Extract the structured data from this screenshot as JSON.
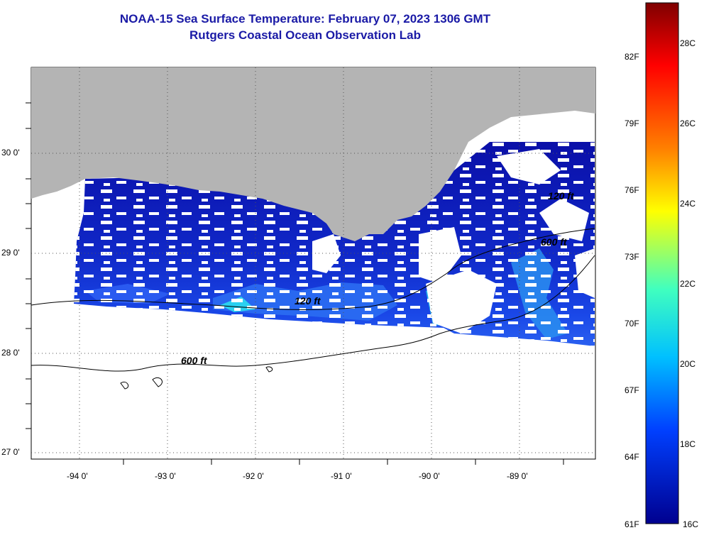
{
  "title": {
    "line1": "NOAA-15 Sea Surface Temperature:  February 07, 2023 1306 GMT",
    "line2": "Rutgers Coastal Ocean Observation Lab"
  },
  "map": {
    "latitude_labels": [
      "30 0'",
      "29 0'",
      "28 0'",
      "27 0'"
    ],
    "longitude_labels": [
      "-94 0'",
      "-93 0'",
      "-92 0'",
      "-91 0'",
      "-90 0'",
      "-89 0'"
    ],
    "contour_labels": [
      "120 ft",
      "600 ft",
      "600 ft",
      "120 ft"
    ],
    "colors": {
      "land": "#b4b4b4",
      "ocean_deep_blue": "#0a0fa8",
      "ocean_mid_blue": "#1c3fe0",
      "ocean_cyan": "#22c8f0",
      "no_data": "#ffffff"
    }
  },
  "colorbar": {
    "fahrenheit_labels": [
      "82F",
      "79F",
      "76F",
      "73F",
      "70F",
      "67F",
      "64F",
      "61F"
    ],
    "celsius_labels": [
      "28C",
      "26C",
      "24C",
      "22C",
      "20C",
      "18C",
      "16C"
    ],
    "range_c": [
      16,
      29
    ],
    "gradient_colors": [
      "#7f0000",
      "#ff0000",
      "#ff8000",
      "#ffff00",
      "#40ffbf",
      "#00c0ff",
      "#0040ff",
      "#00008f"
    ]
  }
}
